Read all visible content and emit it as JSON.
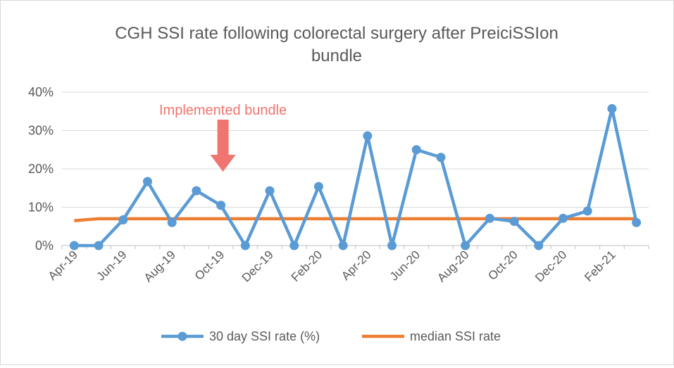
{
  "chart_data": {
    "type": "line",
    "title_lines": [
      "CGH SSI rate following colorectal surgery after PreiciSSIon",
      "bundle"
    ],
    "xlabel": "",
    "ylabel": "",
    "ylim": [
      0,
      40
    ],
    "y_ticks": [
      0,
      10,
      20,
      30,
      40
    ],
    "y_tick_labels": [
      "0%",
      "10%",
      "20%",
      "30%",
      "40%"
    ],
    "x": [
      "Apr-19",
      "May-19",
      "Jun-19",
      "Jul-19",
      "Aug-19",
      "Sep-19",
      "Oct-19",
      "Nov-19",
      "Dec-19",
      "Jan-20",
      "Feb-20",
      "Mar-20",
      "Apr-20",
      "May-20",
      "Jun-20",
      "Jul-20",
      "Aug-20",
      "Sep-20",
      "Oct-20",
      "Nov-20",
      "Dec-20",
      "Jan-21",
      "Feb-21",
      "Mar-21"
    ],
    "x_tick_labels": [
      "Apr-19",
      "Jun-19",
      "Aug-19",
      "Oct-19",
      "Dec-19",
      "Feb-20",
      "Apr-20",
      "Jun-20",
      "Aug-20",
      "Oct-20",
      "Dec-20",
      "Feb-21"
    ],
    "series": [
      {
        "name": "30 day SSI rate (%)",
        "color": "#5b9bd5",
        "values": [
          0,
          0,
          6.7,
          16.7,
          6,
          14.3,
          10.5,
          0,
          14.3,
          0,
          15.4,
          0,
          28.6,
          0,
          25,
          23,
          0,
          7.1,
          6.3,
          0,
          7.1,
          9,
          35.7,
          6
        ]
      },
      {
        "name": "median SSI rate",
        "color": "#ed7d31",
        "values": [
          6.5,
          7,
          7,
          7,
          7,
          7,
          7,
          7,
          7,
          7,
          7,
          7,
          7,
          7,
          7,
          7,
          7,
          7,
          7,
          7,
          7,
          7,
          7,
          7
        ]
      }
    ],
    "grid": true,
    "legend": "bottom",
    "annotation": {
      "text": "Implemented bundle",
      "color": "#f07570",
      "x": "Oct-19"
    }
  }
}
